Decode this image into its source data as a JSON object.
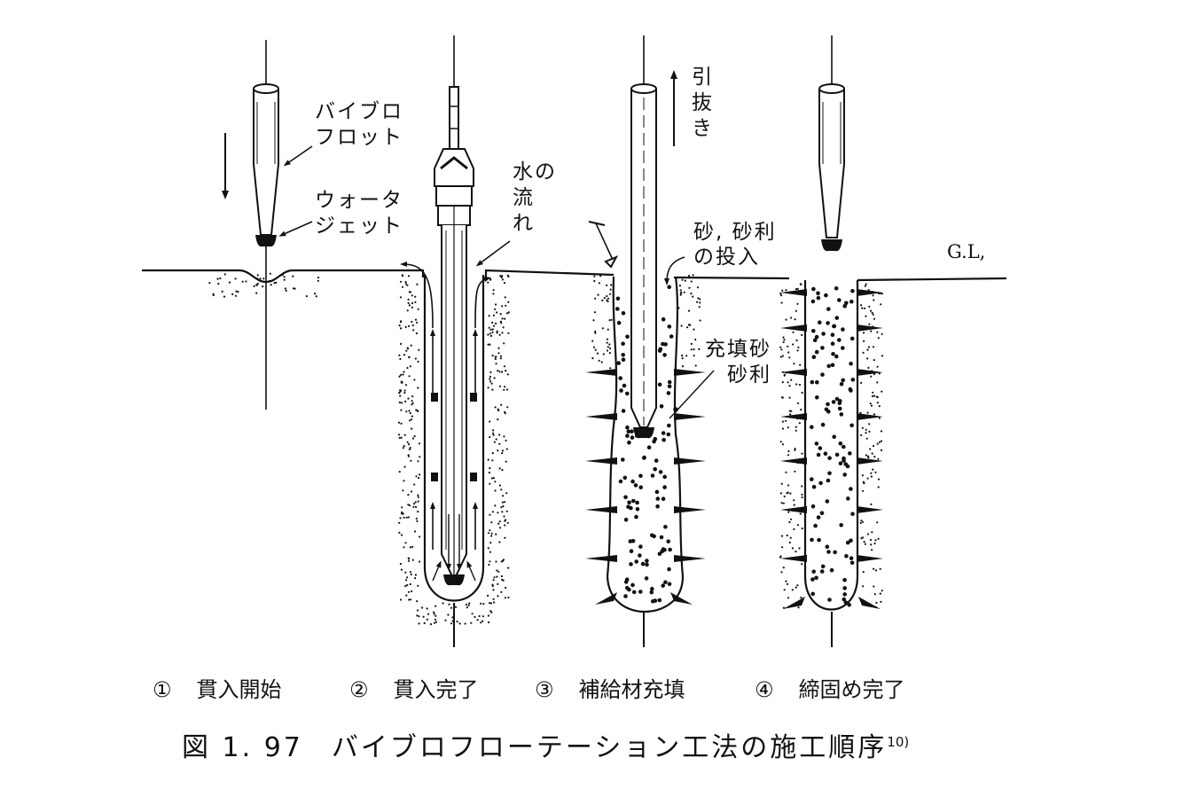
{
  "labels": {
    "vibroflot": [
      "バイブロ",
      "フロット"
    ],
    "water_jet": [
      "ウォータ",
      "ジェット"
    ],
    "water_flow": [
      "水の",
      "流",
      "れ"
    ],
    "pull_out": [
      "引",
      "抜",
      "き"
    ],
    "sand_input": [
      "砂, 砂利",
      "の投入"
    ],
    "fill": [
      "充填砂",
      "砂利"
    ],
    "ground_level": "G.L,"
  },
  "steps": [
    {
      "num": "①",
      "label": "貫入開始"
    },
    {
      "num": "②",
      "label": "貫入完了"
    },
    {
      "num": "③",
      "label": "補給材充填"
    },
    {
      "num": "④",
      "label": "締固め完了"
    }
  ],
  "caption": {
    "prefix": "図 1. 97",
    "title": "バイブロフローテーション工法の施工順序",
    "ref": "10)"
  }
}
